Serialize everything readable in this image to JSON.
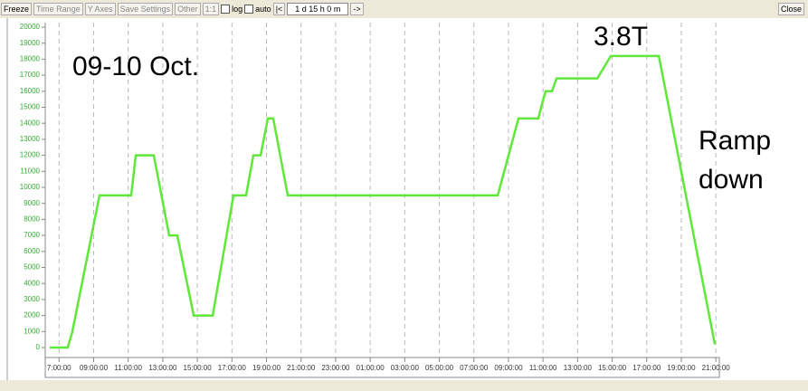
{
  "toolbar": {
    "buttons": [
      "Freeze",
      "Time Range",
      "Y Axes",
      "Save Settings",
      "Other",
      "1:1"
    ],
    "checkboxes": [
      "log",
      "auto"
    ],
    "nav_first": "|<",
    "range": "1 d 15 h  0 m",
    "nav_next": "->",
    "close": "Close"
  },
  "chart_data": {
    "type": "line",
    "annotations": [
      "09-10 Oct.",
      "3.8T",
      "Ramp",
      "down"
    ],
    "series": [
      {
        "color": "#5fe83a",
        "x": [
          6.46,
          7.5,
          7.77,
          9.34,
          11.17,
          11.44,
          12.48,
          13.37,
          13.84,
          14.79,
          15.89,
          17.09,
          17.82,
          18.24,
          18.66,
          19.08,
          19.39,
          20.23,
          32.38,
          33.58,
          34.73,
          34.89,
          35.15,
          35.52,
          35.78,
          38.14,
          38.92,
          41.7,
          44.94
        ],
        "values": [
          0,
          0,
          1000,
          9500,
          9500,
          12000,
          12000,
          7000,
          7000,
          2000,
          2000,
          9500,
          9500,
          12000,
          12000,
          14300,
          14300,
          9500,
          9500,
          14300,
          14300,
          15000,
          16000,
          16000,
          16800,
          16800,
          18200,
          18200,
          200
        ]
      }
    ],
    "xlim": [
      6.2,
      45.2
    ],
    "xticks": [
      {
        "value": 7,
        "label": "7:00:00"
      },
      {
        "value": 9,
        "label": "09:00:00"
      },
      {
        "value": 11,
        "label": "11:00:00"
      },
      {
        "value": 13,
        "label": "13:00:00"
      },
      {
        "value": 15,
        "label": "15:00:00"
      },
      {
        "value": 17,
        "label": "17:00:00"
      },
      {
        "value": 19,
        "label": "19:00:00"
      },
      {
        "value": 21,
        "label": "21:00:00"
      },
      {
        "value": 23,
        "label": "23:00:00"
      },
      {
        "value": 25,
        "label": "01:00:00"
      },
      {
        "value": 27,
        "label": "03:00:00"
      },
      {
        "value": 29,
        "label": "05:00:00"
      },
      {
        "value": 31,
        "label": "07:00:00"
      },
      {
        "value": 33,
        "label": "09:00:00"
      },
      {
        "value": 35,
        "label": "11:00:00"
      },
      {
        "value": 37,
        "label": "13:00:00"
      },
      {
        "value": 39,
        "label": "15:00:00"
      },
      {
        "value": 41,
        "label": "17:00:00"
      },
      {
        "value": 43,
        "label": "19:00:00"
      },
      {
        "value": 45,
        "label": "21:00:00"
      }
    ],
    "ylim": [
      0,
      20000
    ],
    "yticks": [
      0,
      1000,
      2000,
      3000,
      4000,
      5000,
      6000,
      7000,
      8000,
      9000,
      10000,
      11000,
      12000,
      13000,
      14000,
      15000,
      16000,
      17000,
      18000,
      19000,
      20000
    ],
    "grid": true
  }
}
